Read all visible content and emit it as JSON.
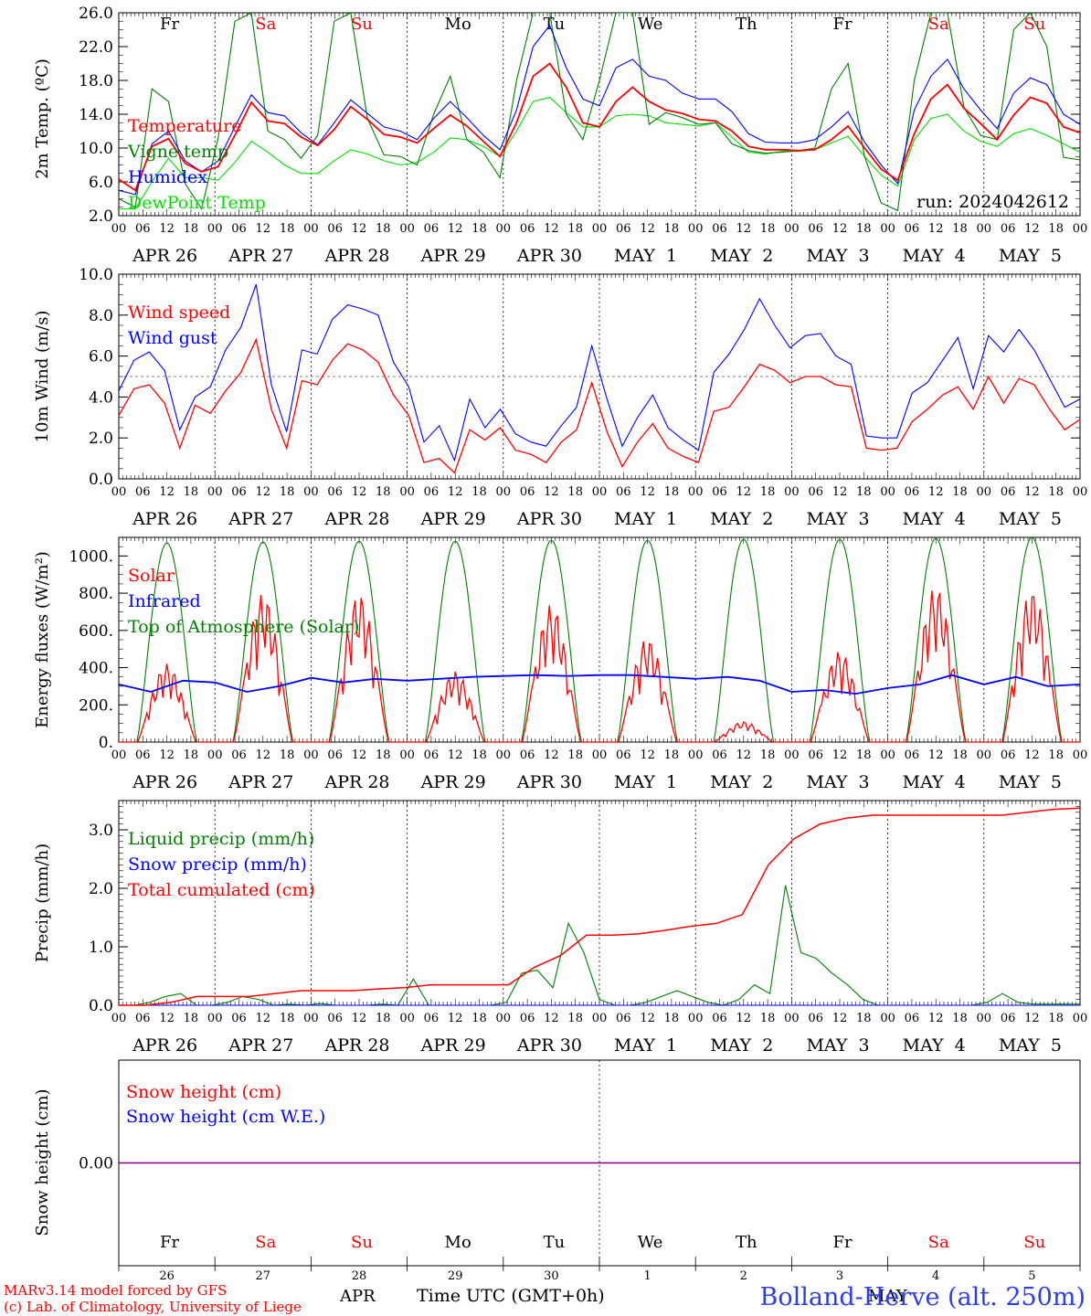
{
  "day_names": [
    "Fr",
    "Sa",
    "Su",
    "Mo",
    "Tu",
    "We",
    "Th",
    "Fr",
    "Sa",
    "Su"
  ],
  "weekend_days": [
    1,
    2,
    8,
    9
  ],
  "hour_labels": [
    "00",
    "06",
    "12",
    "18"
  ],
  "date_labels": [
    "APR 26",
    "APR 27",
    "APR 28",
    "APR 29",
    "APR 30",
    "MAY  1",
    "MAY  2",
    "MAY  3",
    "MAY  4",
    "MAY  5"
  ],
  "day_numbers": [
    "26",
    "27",
    "28",
    "29",
    "30",
    "1",
    "2",
    "3",
    "4",
    "5"
  ],
  "colors": {
    "red": "#ff0000",
    "green": "#008000",
    "blue": "#0000ff",
    "lightgreen": "#00e000",
    "purple": "#800080",
    "title_blue": "#2b3df0"
  },
  "footer": {
    "model_line": "MARv3.14 model forced by GFS",
    "copyright_line": "(c) Lab. of Climatology, University of Liege",
    "month_apr": "APR",
    "month_may": "MAY",
    "time_label": "Time UTC (GMT+0h)",
    "station": "Bolland-Herve (alt. 250m)"
  },
  "chart_data": [
    {
      "type": "line",
      "ylabel": "2m Temp. (ºC)",
      "ylim": [
        2.0,
        26.0
      ],
      "yticks": [
        "2.0",
        "6.0",
        "10.0",
        "14.0",
        "18.0",
        "22.0",
        "26.0"
      ],
      "run_label": "run: 2024042612",
      "x_start": "2024-04-26 00 UTC",
      "x_step_hours": 6,
      "series": [
        {
          "name": "Temperature",
          "color": "#ff0000",
          "values": [
            6.3,
            5.0,
            10.2,
            11.1,
            8.2,
            7.2,
            7.8,
            11.5,
            15.4,
            13.2,
            12.9,
            11.3,
            10.3,
            12.2,
            14.9,
            13.4,
            11.6,
            11.3,
            10.6,
            12.3,
            13.9,
            12.6,
            10.8,
            9.0,
            13.0,
            18.5,
            20.0,
            17.2,
            13.0,
            12.5,
            15.5,
            17.2,
            15.5,
            14.5,
            14.1,
            13.4,
            13.2,
            12.0,
            10.2,
            9.8,
            9.8,
            9.7,
            9.8,
            11.0,
            12.6,
            10.0,
            7.5,
            6.2,
            11.7,
            15.8,
            17.5,
            14.7,
            12.9,
            11.0,
            13.9,
            16.0,
            15.3,
            12.5,
            11.8
          ]
        },
        {
          "name": "Vigne temp",
          "color": "#008000",
          "values": [
            4.0,
            3.0,
            17.0,
            15.5,
            5.8,
            2.8,
            11.2,
            25.0,
            26.0,
            12.0,
            11.0,
            8.8,
            11.5,
            25.0,
            26.0,
            13.5,
            9.2,
            9.0,
            8.0,
            14.0,
            18.5,
            11.0,
            9.5,
            6.5,
            18.0,
            26.0,
            26.0,
            14.0,
            11.0,
            18.0,
            26.0,
            26.0,
            12.8,
            14.2,
            13.6,
            12.8,
            13.0,
            10.5,
            9.7,
            9.4,
            9.5,
            9.7,
            10.0,
            17.0,
            20.0,
            9.0,
            3.5,
            2.6,
            18.0,
            26.0,
            26.0,
            14.8,
            11.5,
            11.0,
            24.0,
            26.0,
            22.0,
            8.9,
            8.6
          ]
        },
        {
          "name": "Humidex",
          "color": "#0000ff",
          "values": [
            5.0,
            4.5,
            10.5,
            12.0,
            8.5,
            7.2,
            8.5,
            12.5,
            16.3,
            14.2,
            13.8,
            11.8,
            10.4,
            13.0,
            15.7,
            14.1,
            12.5,
            12.0,
            11.0,
            13.5,
            15.5,
            13.6,
            11.5,
            9.8,
            14.5,
            22.0,
            24.5,
            19.5,
            15.8,
            15.0,
            19.5,
            20.5,
            18.5,
            18.0,
            16.5,
            15.8,
            15.8,
            14.3,
            11.7,
            10.7,
            10.6,
            10.6,
            11.0,
            12.5,
            14.3,
            10.7,
            8.0,
            5.8,
            14.5,
            18.5,
            20.5,
            17.0,
            14.5,
            12.3,
            16.5,
            18.3,
            17.5,
            14.0,
            12.8
          ]
        },
        {
          "name": "DewPoint Temp",
          "color": "#00e000",
          "values": [
            2.8,
            2.8,
            6.0,
            8.8,
            6.5,
            6.5,
            6.2,
            8.3,
            10.8,
            9.5,
            8.0,
            7.0,
            7.0,
            8.5,
            9.8,
            9.3,
            8.5,
            8.0,
            8.3,
            9.5,
            11.2,
            11.0,
            10.2,
            9.0,
            12.0,
            15.5,
            16.0,
            14.2,
            12.5,
            12.5,
            13.8,
            14.0,
            13.8,
            13.0,
            12.8,
            12.6,
            13.0,
            11.3,
            9.5,
            9.3,
            9.6,
            9.6,
            9.8,
            10.6,
            11.4,
            9.0,
            6.8,
            5.5,
            11.0,
            13.5,
            14.0,
            12.0,
            10.8,
            10.2,
            11.7,
            12.3,
            11.5,
            10.5,
            9.5
          ]
        }
      ]
    },
    {
      "type": "line",
      "ylabel": "10m Wind (m/s)",
      "ylim": [
        0.0,
        10.0
      ],
      "yticks": [
        "0.0",
        "2.0",
        "4.0",
        "6.0",
        "8.0",
        "10.0"
      ],
      "reference_line": 5.0,
      "x_step_hours": 6,
      "series": [
        {
          "name": "Wind speed",
          "color": "#ff0000",
          "values": [
            3.1,
            4.4,
            4.6,
            3.7,
            1.5,
            3.6,
            3.2,
            4.3,
            5.2,
            6.8,
            3.4,
            1.5,
            4.8,
            4.6,
            5.8,
            6.6,
            6.3,
            5.7,
            4.1,
            3.1,
            0.8,
            1.0,
            0.3,
            2.4,
            1.9,
            2.5,
            1.4,
            1.2,
            0.8,
            1.8,
            2.4,
            4.7,
            2.3,
            0.6,
            1.8,
            2.7,
            1.5,
            1.1,
            0.8,
            3.3,
            3.5,
            4.5,
            5.6,
            5.3,
            4.7,
            5.0,
            5.0,
            4.6,
            4.5,
            1.5,
            1.4,
            1.5,
            2.8,
            3.4,
            4.1,
            4.5,
            3.4,
            5.0,
            3.7,
            4.9,
            4.6,
            3.4,
            2.4,
            2.9
          ]
        },
        {
          "name": "Wind gust",
          "color": "#0000ff",
          "values": [
            4.3,
            5.8,
            6.2,
            5.3,
            2.4,
            4.0,
            4.5,
            6.3,
            7.4,
            9.5,
            4.6,
            2.3,
            6.3,
            6.1,
            7.8,
            8.5,
            8.3,
            8.0,
            5.7,
            4.5,
            1.8,
            2.6,
            0.9,
            3.9,
            2.5,
            3.4,
            2.2,
            1.8,
            1.6,
            2.6,
            3.5,
            6.5,
            3.9,
            1.6,
            3.0,
            4.1,
            2.5,
            1.9,
            1.4,
            5.2,
            6.1,
            7.3,
            8.8,
            7.5,
            6.4,
            7.0,
            7.1,
            6.0,
            5.6,
            2.1,
            2.0,
            2.0,
            4.2,
            4.7,
            5.8,
            6.9,
            4.4,
            7.0,
            6.2,
            7.3,
            6.3,
            4.9,
            3.5,
            3.9
          ]
        }
      ]
    },
    {
      "type": "line",
      "ylabel": "Energy fluxes (W/m²)",
      "ylim": [
        0,
        1100
      ],
      "yticks": [
        "0.",
        "200.",
        "400.",
        "600.",
        "800.",
        "1000."
      ],
      "series": [
        {
          "name": "Solar",
          "color": "#ff0000",
          "peaks": [
            420,
            800,
            800,
            380,
            740,
            560,
            110,
            490,
            840,
            820
          ]
        },
        {
          "name": "Infrared",
          "color": "#0000ff",
          "values": [
            310,
            270,
            330,
            320,
            270,
            300,
            345,
            320,
            340,
            330,
            340,
            350,
            355,
            360,
            355,
            360,
            360,
            350,
            340,
            350,
            330,
            270,
            280,
            260,
            290,
            310,
            360,
            310,
            350,
            300,
            310
          ]
        },
        {
          "name": "Top of Atmosphere (Solar)",
          "color": "#008000",
          "peaks": [
            1070,
            1075,
            1080,
            1080,
            1085,
            1085,
            1090,
            1090,
            1095,
            1100
          ]
        }
      ]
    },
    {
      "type": "line",
      "ylabel": "Precip (mm/h)",
      "ylim": [
        0.0,
        3.5
      ],
      "yticks": [
        "0.0",
        "1.0",
        "2.0",
        "3.0"
      ],
      "series": [
        {
          "name": "Liquid precip (mm/h)",
          "color": "#008000",
          "values": [
            0,
            0,
            0.05,
            0.15,
            0.2,
            0,
            0,
            0.05,
            0.15,
            0.1,
            0,
            0.02,
            0,
            0.03,
            0,
            0,
            0,
            0.02,
            0,
            0.45,
            0,
            0,
            0,
            0,
            0,
            0.05,
            0.55,
            0.6,
            0.3,
            1.4,
            0.9,
            0.1,
            0,
            0,
            0.05,
            0.15,
            0.25,
            0.15,
            0.05,
            0,
            0.1,
            0.35,
            0.2,
            2.05,
            0.9,
            0.8,
            0.55,
            0.35,
            0.1,
            0,
            0,
            0,
            0,
            0,
            0,
            0,
            0.05,
            0.2,
            0.05,
            0.02,
            0.02,
            0.02,
            0.02
          ]
        },
        {
          "name": "Snow precip (mm/h)",
          "color": "#0000ff",
          "values": [
            0,
            0
          ]
        },
        {
          "name": "Total cumulated (cm)",
          "color": "#ff0000",
          "values": [
            0,
            0,
            0.05,
            0.15,
            0.15,
            0.15,
            0.2,
            0.25,
            0.25,
            0.25,
            0.28,
            0.3,
            0.35,
            0.35,
            0.35,
            0.35,
            0.65,
            0.85,
            1.2,
            1.2,
            1.22,
            1.28,
            1.35,
            1.4,
            1.55,
            2.4,
            2.85,
            3.1,
            3.2,
            3.25,
            3.25,
            3.25,
            3.25,
            3.25,
            3.25,
            3.3,
            3.35,
            3.37
          ]
        }
      ]
    },
    {
      "type": "line",
      "ylabel": "Snow height (cm)",
      "yticks": [
        "0.00"
      ],
      "series": [
        {
          "name": "Snow height (cm)",
          "color": "#ff0000",
          "values": [
            0,
            0
          ]
        },
        {
          "name": "Snow height (cm W.E.)",
          "color": "#0000ff",
          "values": [
            0,
            0
          ]
        }
      ]
    }
  ]
}
